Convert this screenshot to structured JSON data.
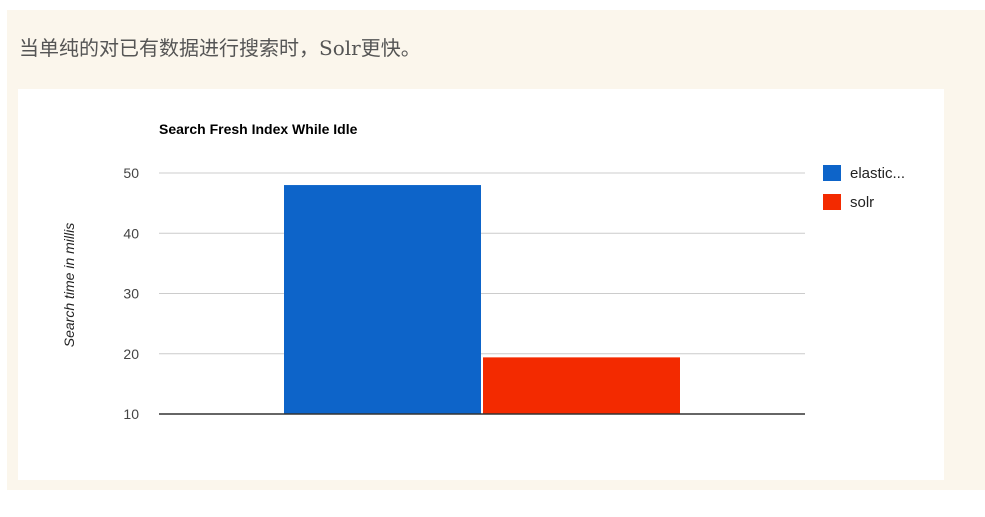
{
  "caption": "当单纯的对已有数据进行搜索时，Solr更快。",
  "colors": {
    "panel_bg": "#fbf6ec",
    "grid": "#cccccc",
    "axis": "#333333"
  },
  "chart_data": {
    "type": "bar",
    "title": "Search Fresh Index While Idle",
    "xlabel": "",
    "ylabel": "Search time in millis",
    "ylim": [
      10,
      50
    ],
    "yticks": [
      10,
      20,
      30,
      40,
      50
    ],
    "grid": true,
    "legend_position": "right",
    "categories": [
      ""
    ],
    "series": [
      {
        "name": "elastic...",
        "color": "#0d64c9",
        "values": [
          48
        ]
      },
      {
        "name": "solr",
        "color": "#f32a00",
        "values": [
          19.4
        ]
      }
    ]
  }
}
